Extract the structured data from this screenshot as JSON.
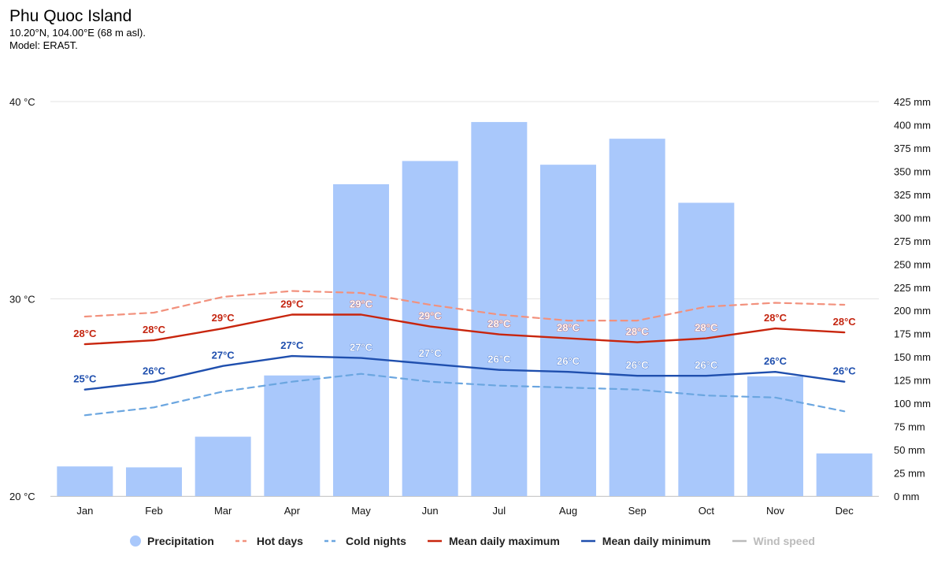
{
  "header": {
    "title": "Phu Quoc Island",
    "coords": "10.20°N, 104.00°E (68 m asl).",
    "model": "Model: ERA5T."
  },
  "colors": {
    "precipitation": "#a9c8fb",
    "hot_days": "#f2917d",
    "cold_nights": "#6ba6e0",
    "mean_max": "#c8250d",
    "mean_max_label": "#c42510",
    "mean_min": "#1f4fae",
    "mean_min_label": "#1f4fae",
    "wind": "#aaaaaa",
    "grid": "#e3e3e3"
  },
  "chart_data": {
    "type": "bar+line",
    "categories": [
      "Jan",
      "Feb",
      "Mar",
      "Apr",
      "May",
      "Jun",
      "Jul",
      "Aug",
      "Sep",
      "Oct",
      "Nov",
      "Dec"
    ],
    "left_axis": {
      "unit": "°C",
      "min": 20,
      "max": 40,
      "ticks": [
        "20 °C",
        "30 °C",
        "40 °C"
      ],
      "tick_values": [
        20,
        30,
        40
      ]
    },
    "right_axis": {
      "unit": "mm",
      "min": 0,
      "max": 425,
      "ticks": [
        "0 mm",
        "25 mm",
        "50 mm",
        "75 mm",
        "100 mm",
        "125 mm",
        "150 mm",
        "175 mm",
        "200 mm",
        "225 mm",
        "250 mm",
        "275 mm",
        "300 mm",
        "325 mm",
        "350 mm",
        "375 mm",
        "400 mm",
        "425 mm"
      ],
      "tick_values": [
        0,
        25,
        50,
        75,
        100,
        125,
        150,
        175,
        200,
        225,
        250,
        275,
        300,
        325,
        350,
        375,
        400,
        425
      ]
    },
    "precipitation_mm": [
      32,
      31,
      64,
      130,
      336,
      361,
      403,
      357,
      385,
      316,
      129,
      46
    ],
    "hot_days": [
      29.1,
      29.3,
      30.1,
      30.4,
      30.3,
      29.7,
      29.2,
      28.9,
      28.9,
      29.6,
      29.8,
      29.7
    ],
    "cold_nights": [
      24.1,
      24.5,
      25.3,
      25.8,
      26.2,
      25.8,
      25.6,
      25.5,
      25.4,
      25.1,
      25.0,
      24.3
    ],
    "mean_daily_max": [
      27.7,
      27.9,
      28.5,
      29.2,
      29.2,
      28.6,
      28.2,
      28.0,
      27.8,
      28.0,
      28.5,
      28.3
    ],
    "mean_daily_max_labels": [
      "28°C",
      "28°C",
      "29°C",
      "29°C",
      "29°C",
      "29°C",
      "28°C",
      "28°C",
      "28°C",
      "28°C",
      "28°C",
      "28°C"
    ],
    "mean_daily_min": [
      25.4,
      25.8,
      26.6,
      27.1,
      27.0,
      26.7,
      26.4,
      26.3,
      26.1,
      26.1,
      26.3,
      25.8
    ],
    "mean_daily_min_labels": [
      "25°C",
      "26°C",
      "27°C",
      "27°C",
      "27°C",
      "27°C",
      "26°C",
      "26°C",
      "26°C",
      "26°C",
      "26°C",
      "26°C"
    ],
    "legend": [
      {
        "key": "precipitation",
        "label": "Precipitation",
        "symbol": "dot",
        "enabled": true
      },
      {
        "key": "hot_days",
        "label": "Hot days",
        "symbol": "dash",
        "enabled": true
      },
      {
        "key": "cold_nights",
        "label": "Cold nights",
        "symbol": "dash",
        "enabled": true
      },
      {
        "key": "mean_max",
        "label": "Mean daily maximum",
        "symbol": "line",
        "enabled": true
      },
      {
        "key": "mean_min",
        "label": "Mean daily minimum",
        "symbol": "line",
        "enabled": true
      },
      {
        "key": "wind",
        "label": "Wind speed",
        "symbol": "line",
        "enabled": false
      }
    ]
  }
}
